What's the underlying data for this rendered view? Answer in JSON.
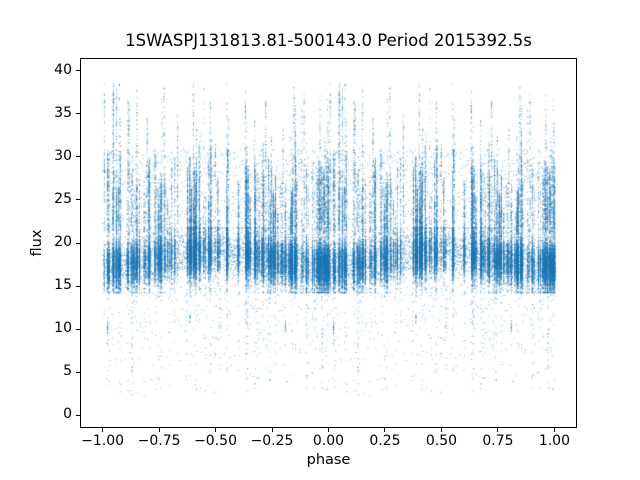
{
  "figure": {
    "background": "#ffffff",
    "frame_color": "#000000",
    "text_color": "#000000"
  },
  "chart_data": {
    "type": "scatter",
    "title": "1SWASPJ131813.81-500143.0 Period 2015392.5s",
    "xlabel": "phase",
    "ylabel": "flux",
    "xlim": [
      -1.1,
      1.1
    ],
    "ylim": [
      -1.45,
      41.45
    ],
    "x_ticks": [
      -1.0,
      -0.75,
      -0.5,
      -0.25,
      0.0,
      0.25,
      0.5,
      0.75,
      1.0
    ],
    "x_tick_labels": [
      "−1.00",
      "−0.75",
      "−0.50",
      "−0.25",
      "0.00",
      "0.25",
      "0.50",
      "0.75",
      "1.00"
    ],
    "y_ticks": [
      0,
      5,
      10,
      15,
      20,
      25,
      30,
      35,
      40
    ],
    "y_tick_labels": [
      "0",
      "5",
      "10",
      "15",
      "20",
      "25",
      "30",
      "35",
      "40"
    ],
    "grid": false,
    "legend": null,
    "marker_color": "#1f77b4",
    "marker_alpha": 0.55,
    "point_size": 1,
    "summary": {
      "phase_data_range": [
        -1.0,
        1.0
      ],
      "dense_band_flux": [
        15,
        21
      ],
      "band_mean_flux_at_phase0": 17.4,
      "band_mean_flux_at_phase_half": 19.0,
      "upper_cloud_flux": [
        21,
        31
      ],
      "max_spike_flux": 39,
      "min_outlier_flux": 1,
      "pattern": "same folded light curve plotted at phase and phase-1, vertical streaks at discrete phases"
    },
    "generator": {
      "seed": 1318,
      "plot_offsets": [
        0,
        -1
      ],
      "band": {
        "mean": 18.2,
        "mean_mod_amp": 0.8,
        "sd": 1.4,
        "clip": [
          14.3,
          21.8
        ]
      },
      "band_continuum_n": 3000,
      "streaks": {
        "count": 150,
        "width_min": 0.0006,
        "width_max": 0.004,
        "base_n_min": 60,
        "base_n_max": 300,
        "upper_base": 21.3,
        "upper_max_min": 22.5,
        "upper_max_max": 30.5,
        "upper_frac_min": 0.2,
        "upper_frac_max": 0.75
      },
      "upper_gaps": [
        {
          "p": 0.92,
          "sigma": 0.035,
          "depth": 0.6
        },
        {
          "p": 0.8,
          "sigma": 0.02,
          "depth": 0.5
        },
        {
          "p": 0.13,
          "sigma": 0.02,
          "depth": 0.45
        }
      ],
      "spikes": {
        "prob": 0.2,
        "ymin_offset": -2,
        "ymax_min": 31,
        "ymax_max": 38.5,
        "n_min": 12,
        "n_max": 50
      },
      "low_tails": {
        "prob": 0.4,
        "n_min": 2,
        "n_max": 12,
        "top": 14.8,
        "depth_pow": 2.2,
        "depth_range": 12.5
      },
      "tall_spike_n": 95,
      "tall_spike_width": 0.0025,
      "tall_spike_base": 16.0,
      "tall_spikes": [
        {
          "p": 0.045,
          "ymax": 38.8
        },
        {
          "p": 0.115,
          "ymax": 36.2
        },
        {
          "p": 0.195,
          "ymax": 34.5
        },
        {
          "p": 0.27,
          "ymax": 38.5
        },
        {
          "p": 0.33,
          "ymax": 35.6
        },
        {
          "p": 0.4,
          "ymax": 38.7
        },
        {
          "p": 0.475,
          "ymax": 36.4
        },
        {
          "p": 0.555,
          "ymax": 34.8
        },
        {
          "p": 0.63,
          "ymax": 38.2
        },
        {
          "p": 0.72,
          "ymax": 36.8
        },
        {
          "p": 0.845,
          "ymax": 38.6
        },
        {
          "p": 0.89,
          "ymax": 37.4
        },
        {
          "p": 0.96,
          "ymax": 34.2
        }
      ],
      "deep_tail_n": 14,
      "deep_tail_width": 0.002,
      "deep_tails": [
        {
          "p": 0.64,
          "ymin": 1.0
        },
        {
          "p": 0.13,
          "ymin": 2.2
        },
        {
          "p": 0.37,
          "ymin": 3.0
        },
        {
          "p": 0.97,
          "ymin": 2.4
        },
        {
          "p": 0.52,
          "ymin": 4.0
        }
      ],
      "low_cluster_width": 0.002,
      "low_clusters": [
        {
          "p": 0.02,
          "y": 10.2,
          "n": 22
        },
        {
          "p": 0.807,
          "y": 10.5,
          "n": 16
        },
        {
          "p": 0.385,
          "y": 11.2,
          "n": 10
        }
      ],
      "sparse_upper": {
        "n": 700,
        "ymin": 21.5,
        "ymax": 31.0
      },
      "sparse_low": {
        "n": 220,
        "ymin": 2.5,
        "ymax": 14.5
      }
    }
  }
}
